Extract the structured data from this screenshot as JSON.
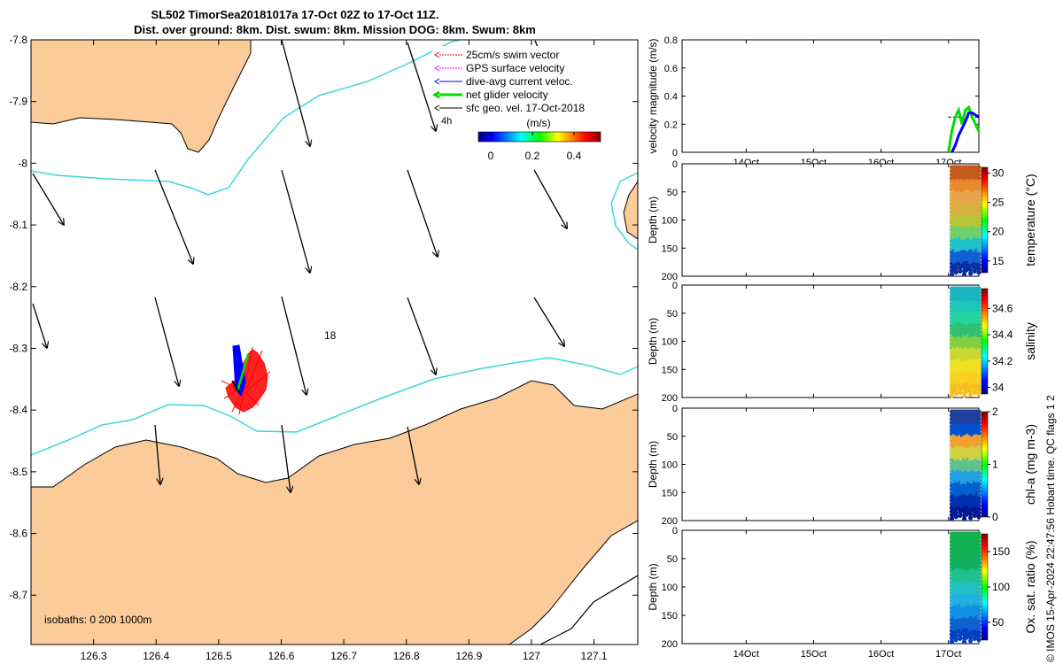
{
  "header": {
    "title_line1": "SL502 TimorSea20181017a 17-Oct 02Z to 17-Oct 11Z.",
    "title_line2": "Dist. over ground: 8km. Dist. swum: 8km. Mission DOG: 8km. Swum: 8km"
  },
  "colors": {
    "land": "#fbcb99",
    "isobath_200": "#3dd8d8",
    "coast": "#000000",
    "swim_vector": "#ff0000",
    "gps_velocity": "#ff00ff",
    "dive_avg": "#0000ff",
    "net_velocity": "#00dd00",
    "sfc_geo": "#000000"
  },
  "map": {
    "x_ticks": [
      "126.3",
      "126.4",
      "126.5",
      "126.6",
      "126.7",
      "126.8",
      "126.9",
      "127",
      "127.1"
    ],
    "y_ticks": [
      "-7.8",
      "-7.9",
      "-8",
      "-8.1",
      "-8.2",
      "-8.3",
      "-8.4",
      "-8.5",
      "-8.6",
      "-8.7"
    ],
    "lon_range": [
      126.2,
      127.17
    ],
    "lat_range": [
      -8.78,
      -7.8
    ],
    "isobath_note": "isobaths: 0   200  1000m",
    "label_4h": "4h",
    "label_18": "18",
    "legend": {
      "items": [
        {
          "label": "25cm/s swim vector",
          "color": "#ff0000"
        },
        {
          "label": "GPS surface velocity",
          "color": "#ff00ff"
        },
        {
          "label": "dive-avg current veloc.",
          "color": "#0000ff"
        },
        {
          "label": "net glider velocity",
          "color": "#00dd00"
        },
        {
          "label": "sfc geo. vel. 17-Oct-2018",
          "color": "#000000"
        }
      ],
      "colorbar_unit": "(m/s)",
      "colorbar_ticks": [
        "0",
        "0.2",
        "0.4"
      ]
    }
  },
  "chart_data": [
    {
      "type": "line",
      "title": "",
      "ylabel": "velocity magnitude (m/s)",
      "ylim": [
        0,
        0.8
      ],
      "y_ticks": [
        "0",
        "0.2",
        "0.4",
        "0.6",
        "0.8"
      ],
      "x_ticks": [
        "14Oct",
        "15Oct",
        "16Oct",
        "17Oct"
      ],
      "series": [
        {
          "color": "#000000",
          "dashed": true,
          "x_days": [
            17.0,
            17.45
          ],
          "values": [
            0.25,
            0.25
          ]
        },
        {
          "color": "#00dd00",
          "x_days": [
            17.0,
            17.05,
            17.1,
            17.15,
            17.2,
            17.25,
            17.3,
            17.35,
            17.45
          ],
          "values": [
            0.0,
            0.15,
            0.25,
            0.3,
            0.2,
            0.3,
            0.32,
            0.25,
            0.15
          ]
        },
        {
          "color": "#0000ff",
          "x_days": [
            17.05,
            17.1,
            17.15,
            17.2,
            17.25,
            17.3,
            17.35,
            17.45
          ],
          "values": [
            0.0,
            0.05,
            0.12,
            0.17,
            0.22,
            0.28,
            0.28,
            0.25
          ]
        }
      ]
    },
    {
      "type": "scatter",
      "ylabel": "Depth (m)",
      "y_ticks": [
        "0",
        "50",
        "100",
        "150",
        "200"
      ],
      "colorbar_label": "temperature (°C)",
      "colorbar_ticks": [
        "15",
        "20",
        "25",
        "30"
      ],
      "clim": [
        13,
        31
      ],
      "max_depth": 200
    },
    {
      "type": "scatter",
      "ylabel": "Depth (m)",
      "y_ticks": [
        "0",
        "50",
        "100",
        "150",
        "200"
      ],
      "colorbar_label": "salinity",
      "colorbar_ticks": [
        "34",
        "34.2",
        "34.4",
        "34.6"
      ],
      "clim": [
        33.95,
        34.75
      ],
      "max_depth": 200
    },
    {
      "type": "scatter",
      "ylabel": "Depth (m)",
      "y_ticks": [
        "0",
        "50",
        "100",
        "150",
        "200"
      ],
      "colorbar_label": "chl-a (mg m-3)",
      "colorbar_ticks": [
        "0",
        "1",
        "2"
      ],
      "clim": [
        0,
        2
      ],
      "max_depth": 200
    },
    {
      "type": "scatter",
      "ylabel": "Depth (m)",
      "y_ticks": [
        "0",
        "50",
        "100",
        "150",
        "200"
      ],
      "x_ticks": [
        "14Oct",
        "15Oct",
        "16Oct",
        "17Oct"
      ],
      "colorbar_label": "Ox. sat. ratio (%)",
      "colorbar_ticks": [
        "50",
        "100",
        "150"
      ],
      "clim": [
        25,
        175
      ],
      "max_depth": 200
    }
  ],
  "footer": {
    "credit": "© IMOS 15-Apr-2024 22:47:56 Hobart time. QC flags 1  2"
  }
}
